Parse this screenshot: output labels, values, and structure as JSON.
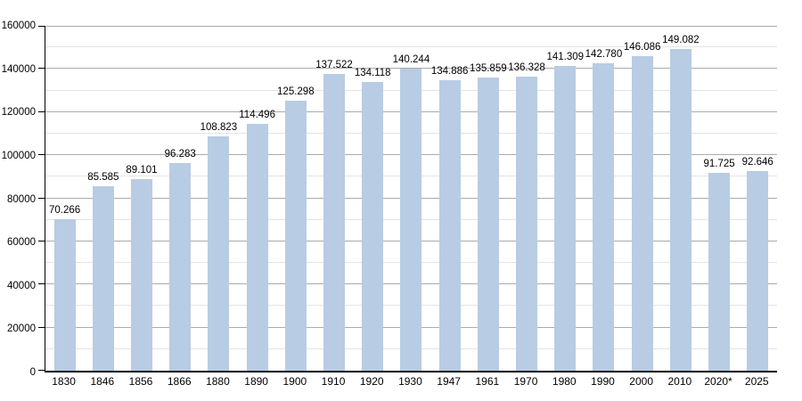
{
  "chart_data": {
    "type": "bar",
    "title": "",
    "xlabel": "",
    "ylabel": "",
    "categories": [
      "1830",
      "1846",
      "1856",
      "1866",
      "1880",
      "1890",
      "1900",
      "1910",
      "1920",
      "1930",
      "1947",
      "1961",
      "1970",
      "1980",
      "1990",
      "2000",
      "2010",
      "2020*",
      "2025"
    ],
    "values": [
      70266,
      85585,
      89101,
      96283,
      108823,
      114496,
      125298,
      137522,
      134118,
      140244,
      134886,
      135859,
      136328,
      141309,
      142780,
      146086,
      149082,
      91725,
      92646
    ],
    "value_labels": [
      "70.266",
      "85.585",
      "89.101",
      "96.283",
      "108.823",
      "114.496",
      "125.298",
      "137.522",
      "134.118",
      "140.244",
      "134.886",
      "135.859",
      "136.328",
      "141.309",
      "142.780",
      "146.086",
      "149.082",
      "91.725",
      "92.646"
    ],
    "y_tick_labels": [
      "0",
      "20000",
      "40000",
      "60000",
      "80000",
      "100000",
      "120000",
      "140000",
      "160000"
    ],
    "ylim": [
      0,
      160000
    ],
    "y_major_step": 20000,
    "y_minor_step": 10000,
    "grid": "major+minor horizontal",
    "legend_position": "none",
    "colors": {
      "bar": "#b8cce4",
      "major_grid": "#ababab",
      "minor_grid": "#e4e4e4",
      "axis": "#000000",
      "text": "#000000",
      "background": "#ffffff"
    }
  }
}
